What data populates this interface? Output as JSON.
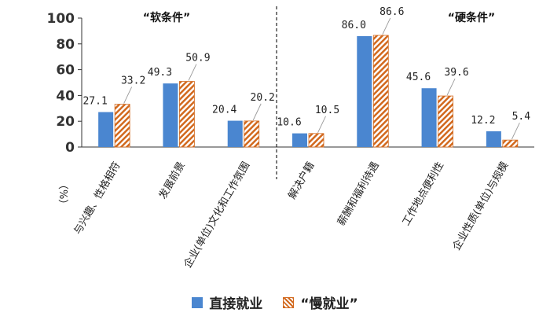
{
  "chart_data": {
    "type": "bar",
    "unit_label": "（%）",
    "yticks": [
      0,
      20,
      40,
      60,
      80,
      100
    ],
    "ylim": [
      0,
      100
    ],
    "categories": [
      "与兴趣、性格相符",
      "发展前景",
      "企业(单位)文化和工作氛围",
      "解决户籍",
      "薪酬和福利待遇",
      "工作地点便利性",
      "企业性质(单位)与规模"
    ],
    "series": [
      {
        "name": "直接就业",
        "values": [
          27.1,
          49.3,
          20.4,
          10.6,
          86.0,
          45.6,
          12.2
        ],
        "labels": [
          "27.1",
          "49.3",
          "20.4",
          "10.6",
          "86.0",
          "45.6",
          "12.2"
        ],
        "color": "#4a86d0"
      },
      {
        "name": "“慢就业”",
        "values": [
          33.2,
          50.9,
          20.2,
          10.5,
          86.6,
          39.6,
          5.4
        ],
        "labels": [
          "33.2",
          "50.9",
          "20.2",
          "10.5",
          "86.6",
          "39.6",
          "5.4"
        ],
        "color": "#d2691e"
      }
    ],
    "groups": [
      {
        "label": "“软条件”"
      },
      {
        "label": "“硬条件”"
      }
    ],
    "legend_position": "bottom",
    "grid": false
  }
}
